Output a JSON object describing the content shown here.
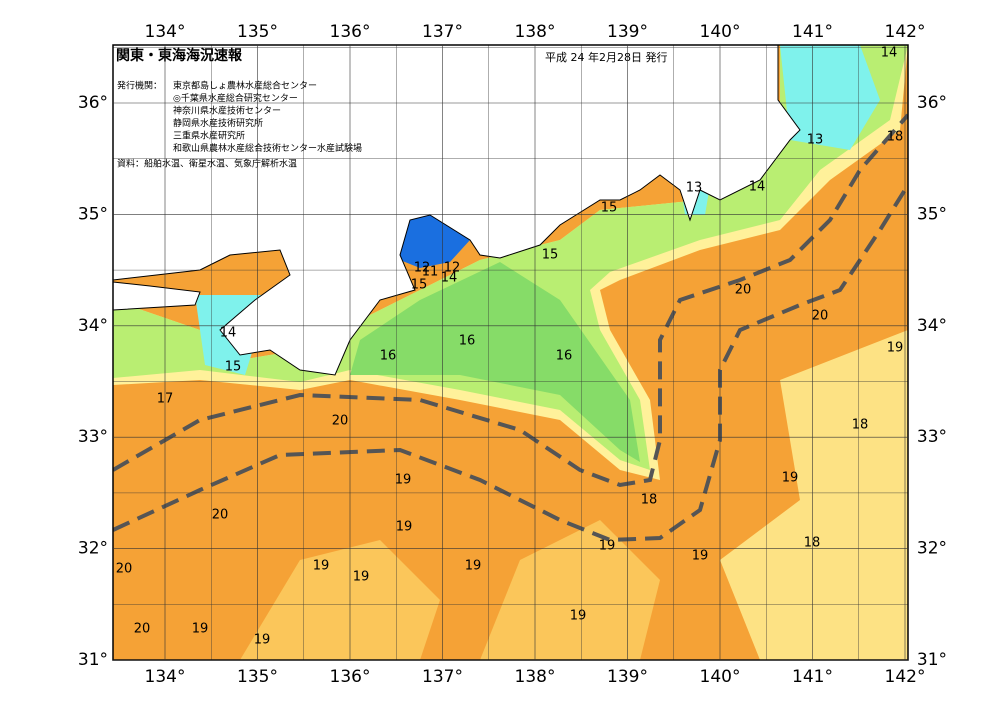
{
  "header": {
    "title": "関東・東海海況速報",
    "date": "平成 24 年2月28日 発行",
    "publisher_label": "発行機関：",
    "publishers": [
      "東京都島しょ農林水産総合センター",
      "◎千葉県水産総合研究センター",
      "神奈川県水産技術センター",
      "静岡県水産技術研究所",
      "三重県水産研究所",
      "和歌山県農林水産総合技術センター水産試験場"
    ],
    "source": "資料：船舶水温、衛星水温、気象庁解析水温"
  },
  "map": {
    "lon_ticks": [
      {
        "value": 134,
        "label": "134°"
      },
      {
        "value": 135,
        "label": "135°"
      },
      {
        "value": 136,
        "label": "136°"
      },
      {
        "value": 137,
        "label": "137°"
      },
      {
        "value": 138,
        "label": "138°"
      },
      {
        "value": 139,
        "label": "139°"
      },
      {
        "value": 140,
        "label": "140°"
      },
      {
        "value": 141,
        "label": "141°"
      },
      {
        "value": 142,
        "label": "142°"
      }
    ],
    "lat_ticks": [
      {
        "value": 31,
        "label": "31°"
      },
      {
        "value": 32,
        "label": "32°"
      },
      {
        "value": 33,
        "label": "33°"
      },
      {
        "value": 34,
        "label": "34°"
      },
      {
        "value": 35,
        "label": "35°"
      },
      {
        "value": 36,
        "label": "36°"
      }
    ],
    "contour_labels": [
      14,
      18,
      13,
      14,
      13,
      15,
      15,
      12,
      11,
      12,
      14,
      15,
      14,
      15,
      16,
      16,
      16,
      17,
      20,
      20,
      20,
      19,
      18,
      19,
      19,
      18,
      20,
      19,
      18,
      19,
      19,
      20,
      19,
      19,
      19,
      19,
      20,
      19,
      19
    ]
  }
}
